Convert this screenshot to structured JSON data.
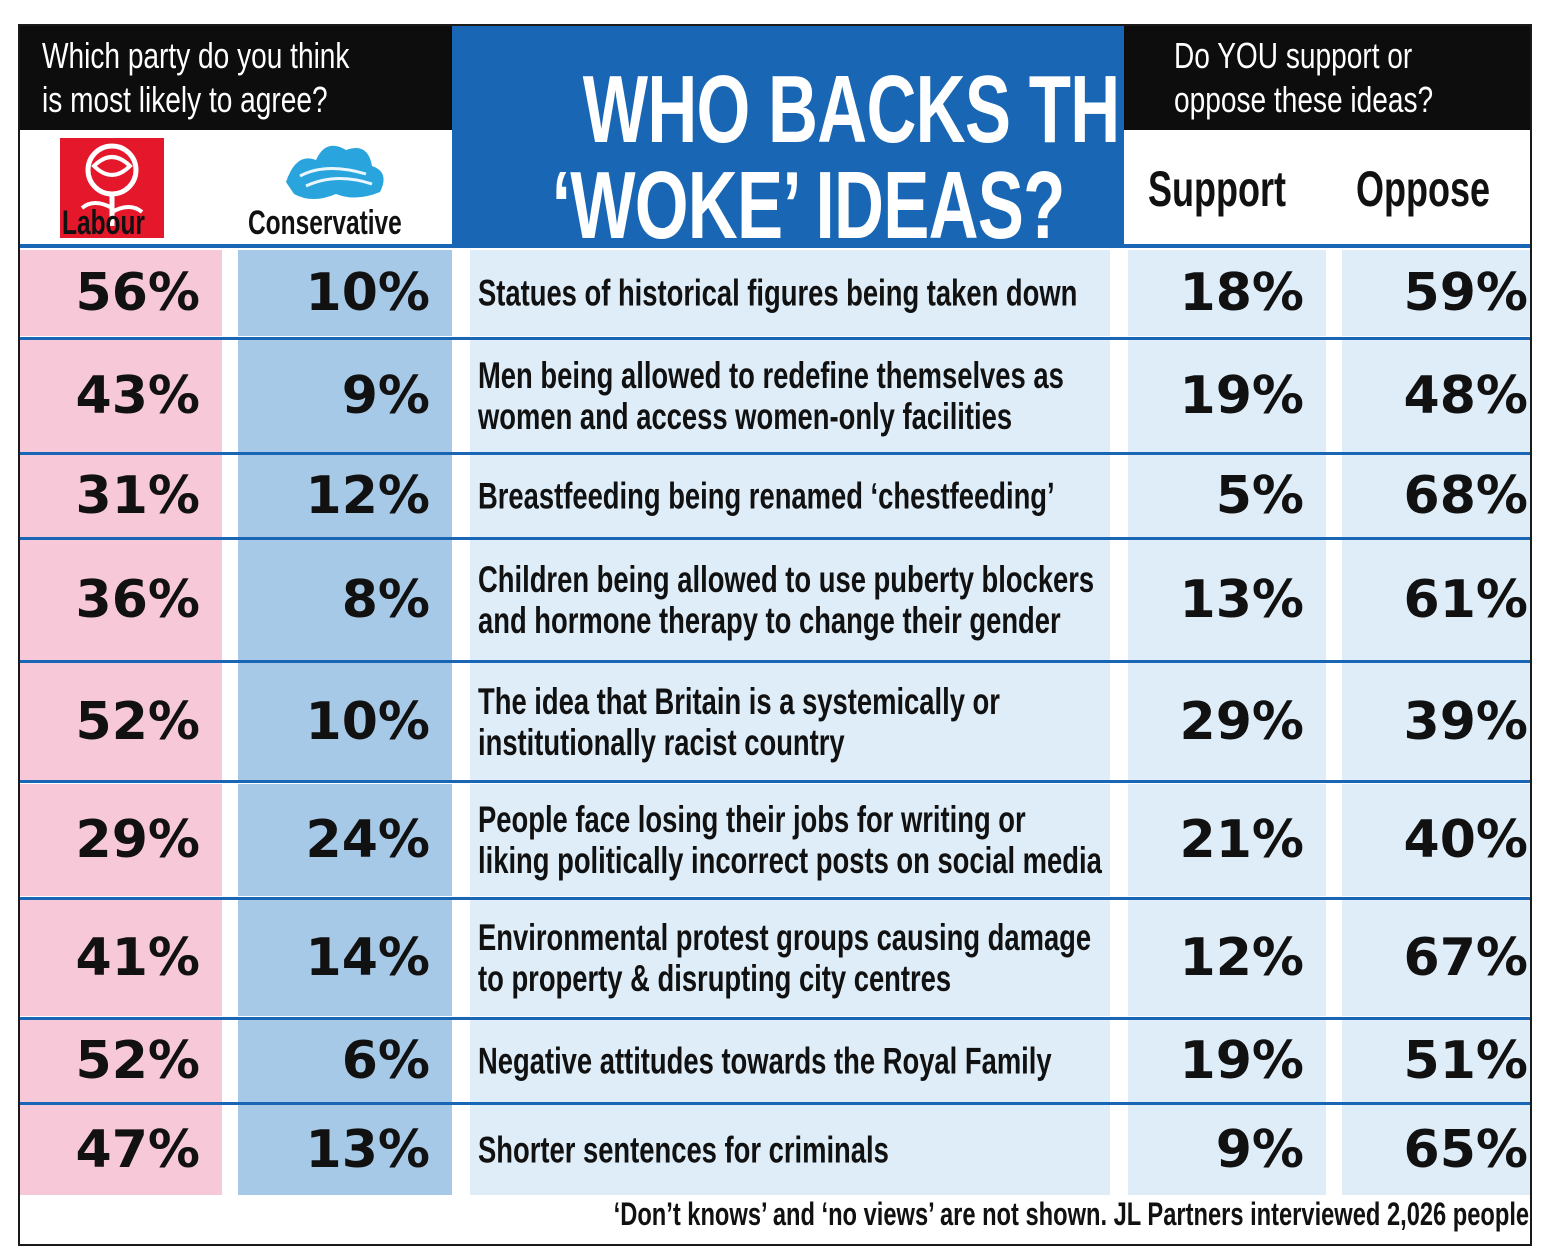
{
  "header": {
    "left_question_line1": "Which party do you think",
    "left_question_line2": "is most likely to agree?",
    "title_line1": "WHO BACKS THESE",
    "title_line2": "‘WOKE’ IDEAS?",
    "right_question_line1": "Do YOU support or",
    "right_question_line2": "oppose these ideas?",
    "support_label": "Support",
    "oppose_label": "Oppose",
    "labour_label": "Labour",
    "conservative_label": "Conservative"
  },
  "colors": {
    "labour": "#f7c8d8",
    "conservative": "#a7c9e8",
    "idea_bg": "#deedf8",
    "title_blue": "#1967b4",
    "labour_red": "#e4172b",
    "tory_blue": "#2aa4dd"
  },
  "icons": {
    "labour_logo": "labour-rose-icon",
    "conservative_logo": "conservative-tree-icon"
  },
  "chart_data": {
    "type": "table",
    "title": "WHO BACKS THESE ‘WOKE’ IDEAS?",
    "columns": [
      "Labour",
      "Conservative",
      "Idea",
      "Support",
      "Oppose"
    ],
    "rows": [
      {
        "labour": "56%",
        "conservative": "10%",
        "idea": [
          "Statues of historical figures being taken down"
        ],
        "support": "18%",
        "oppose": "59%"
      },
      {
        "labour": "43%",
        "conservative": "9%",
        "idea": [
          "Men being allowed to redefine themselves as",
          "women and access women-only facilities"
        ],
        "support": "19%",
        "oppose": "48%"
      },
      {
        "labour": "31%",
        "conservative": "12%",
        "idea": [
          "Breastfeeding being renamed ‘chestfeeding’"
        ],
        "support": "5%",
        "oppose": "68%"
      },
      {
        "labour": "36%",
        "conservative": "8%",
        "idea": [
          "Children being allowed to use puberty blockers",
          "and hormone therapy to change their gender"
        ],
        "support": "13%",
        "oppose": "61%"
      },
      {
        "labour": "52%",
        "conservative": "10%",
        "idea": [
          "The idea that Britain is a systemically or",
          "institutionally racist country"
        ],
        "support": "29%",
        "oppose": "39%"
      },
      {
        "labour": "29%",
        "conservative": "24%",
        "idea": [
          "People face losing their jobs for writing or",
          "liking politically incorrect posts on social media"
        ],
        "support": "21%",
        "oppose": "40%"
      },
      {
        "labour": "41%",
        "conservative": "14%",
        "idea": [
          "Environmental protest groups causing damage",
          "to property & disrupting city centres"
        ],
        "support": "12%",
        "oppose": "67%"
      },
      {
        "labour": "52%",
        "conservative": "6%",
        "idea": [
          "Negative attitudes towards the Royal Family"
        ],
        "support": "19%",
        "oppose": "51%"
      },
      {
        "labour": "47%",
        "conservative": "13%",
        "idea": [
          "Shorter sentences for criminals"
        ],
        "support": "9%",
        "oppose": "65%"
      }
    ]
  },
  "footnote": "‘Don’t knows’ and ‘no views’ are not shown. JL Partners interviewed 2,026 people"
}
